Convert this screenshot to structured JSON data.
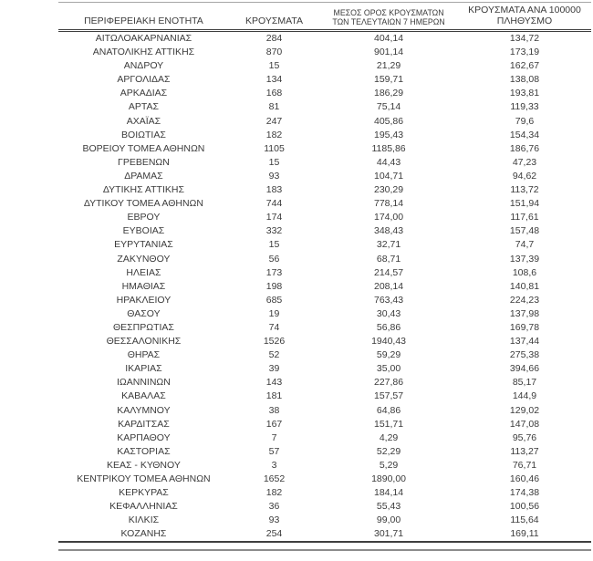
{
  "colors": {
    "text": "#3b3b3b",
    "rule_dark": "#3f3f3f",
    "rule_light": "#a6a6a6",
    "rule_bottom_gray": "#8c8c8c",
    "background": "#ffffff"
  },
  "table": {
    "columns": [
      {
        "id": "region",
        "label_lines": [
          "ΠΕΡΙΦΕΡΕΙΑΚΗ ΕΝΟΤΗΤΑ"
        ]
      },
      {
        "id": "cases",
        "label_lines": [
          "ΚΡΟΥΣΜΑΤΑ"
        ]
      },
      {
        "id": "avg7",
        "label_lines": [
          "ΜΕΣΟΣ ΟΡΟΣ ΚΡΟΥΣΜΑΤΩΝ",
          "ΤΩΝ ΤΕΛΕΥΤΑΙΩΝ 7 ΗΜΕΡΩΝ"
        ]
      },
      {
        "id": "per100k",
        "label_lines": [
          "ΚΡΟΥΣΜΑΤΑ ΑΝΑ 100000",
          "ΠΛΗΘΥΣΜΟ"
        ]
      }
    ],
    "rows": [
      [
        "ΑΙΤΩΛΟΑΚΑΡΝΑΝΙΑΣ",
        "284",
        "404,14",
        "134,72"
      ],
      [
        "ΑΝΑΤΟΛΙΚΗΣ ΑΤΤΙΚΗΣ",
        "870",
        "901,14",
        "173,19"
      ],
      [
        "ΑΝΔΡΟΥ",
        "15",
        "21,29",
        "162,67"
      ],
      [
        "ΑΡΓΟΛΙΔΑΣ",
        "134",
        "159,71",
        "138,08"
      ],
      [
        "ΑΡΚΑΔΙΑΣ",
        "168",
        "186,29",
        "193,81"
      ],
      [
        "ΑΡΤΑΣ",
        "81",
        "75,14",
        "119,33"
      ],
      [
        "ΑΧΑΪΑΣ",
        "247",
        "405,86",
        "79,6"
      ],
      [
        "ΒΟΙΩΤΙΑΣ",
        "182",
        "195,43",
        "154,34"
      ],
      [
        "ΒΟΡΕΙΟΥ ΤΟΜΕΑ ΑΘΗΝΩΝ",
        "1105",
        "1185,86",
        "186,76"
      ],
      [
        "ΓΡΕΒΕΝΩΝ",
        "15",
        "44,43",
        "47,23"
      ],
      [
        "ΔΡΑΜΑΣ",
        "93",
        "104,71",
        "94,62"
      ],
      [
        "ΔΥΤΙΚΗΣ ΑΤΤΙΚΗΣ",
        "183",
        "230,29",
        "113,72"
      ],
      [
        "ΔΥΤΙΚΟΥ ΤΟΜΕΑ ΑΘΗΝΩΝ",
        "744",
        "778,14",
        "151,94"
      ],
      [
        "ΕΒΡΟΥ",
        "174",
        "174,00",
        "117,61"
      ],
      [
        "ΕΥΒΟΙΑΣ",
        "332",
        "348,43",
        "157,48"
      ],
      [
        "ΕΥΡΥΤΑΝΙΑΣ",
        "15",
        "32,71",
        "74,7"
      ],
      [
        "ΖΑΚΥΝΘΟΥ",
        "56",
        "68,71",
        "137,39"
      ],
      [
        "ΗΛΕΙΑΣ",
        "173",
        "214,57",
        "108,6"
      ],
      [
        "ΗΜΑΘΙΑΣ",
        "198",
        "208,14",
        "140,81"
      ],
      [
        "ΗΡΑΚΛΕΙΟΥ",
        "685",
        "763,43",
        "224,23"
      ],
      [
        "ΘΑΣΟΥ",
        "19",
        "30,43",
        "137,98"
      ],
      [
        "ΘΕΣΠΡΩΤΙΑΣ",
        "74",
        "56,86",
        "169,78"
      ],
      [
        "ΘΕΣΣΑΛΟΝΙΚΗΣ",
        "1526",
        "1940,43",
        "137,44"
      ],
      [
        "ΘΗΡΑΣ",
        "52",
        "59,29",
        "275,38"
      ],
      [
        "ΙΚΑΡΙΑΣ",
        "39",
        "35,00",
        "394,66"
      ],
      [
        "ΙΩΑΝΝΙΝΩΝ",
        "143",
        "227,86",
        "85,17"
      ],
      [
        "ΚΑΒΑΛΑΣ",
        "181",
        "157,57",
        "144,9"
      ],
      [
        "ΚΑΛΥΜΝΟΥ",
        "38",
        "64,86",
        "129,02"
      ],
      [
        "ΚΑΡΔΙΤΣΑΣ",
        "167",
        "151,71",
        "147,08"
      ],
      [
        "ΚΑΡΠΑΘΟΥ",
        "7",
        "4,29",
        "95,76"
      ],
      [
        "ΚΑΣΤΟΡΙΑΣ",
        "57",
        "52,29",
        "113,27"
      ],
      [
        "ΚΕΑΣ - ΚΥΘΝΟΥ",
        "3",
        "5,29",
        "76,71"
      ],
      [
        "ΚΕΝΤΡΙΚΟΥ ΤΟΜΕΑ ΑΘΗΝΩΝ",
        "1652",
        "1890,00",
        "160,46"
      ],
      [
        "ΚΕΡΚΥΡΑΣ",
        "182",
        "184,14",
        "174,38"
      ],
      [
        "ΚΕΦΑΛΛΗΝΙΑΣ",
        "36",
        "55,43",
        "100,56"
      ],
      [
        "ΚΙΛΚΙΣ",
        "93",
        "99,00",
        "115,64"
      ],
      [
        "ΚΟΖΑΝΗΣ",
        "254",
        "301,71",
        "169,11"
      ]
    ]
  }
}
